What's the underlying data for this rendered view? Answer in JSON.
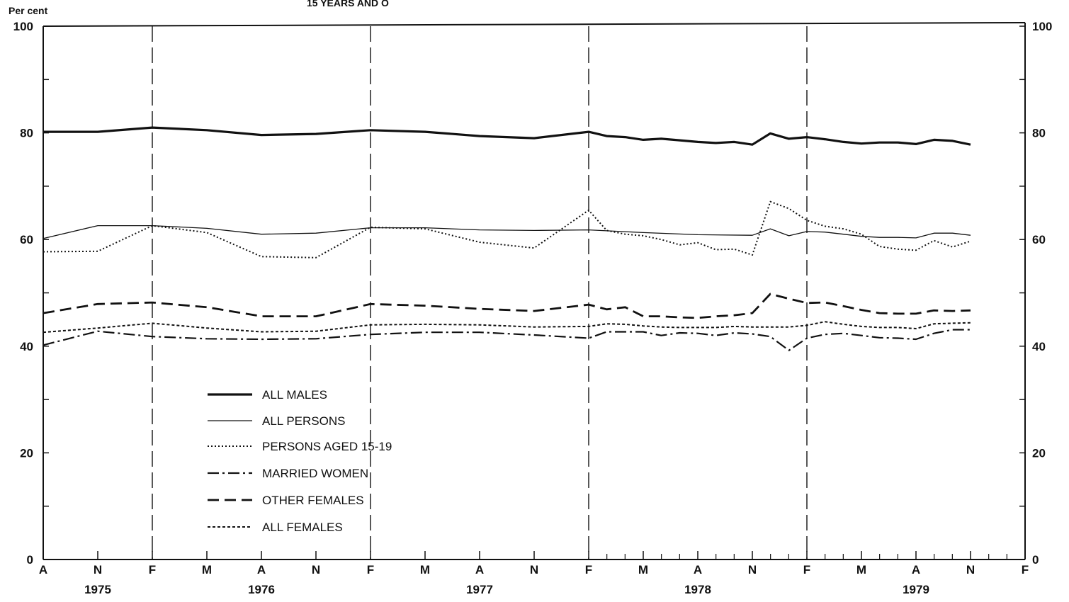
{
  "chart_data": {
    "type": "line",
    "title": "15 YEARS AND O",
    "ylabel": "Per cent",
    "ylim": [
      0,
      100
    ],
    "y_ticks": [
      0,
      20,
      40,
      60,
      80,
      100
    ],
    "grid": "vertical dashed lines at each February",
    "legend_position": "lower-left",
    "x_tick_labels": [
      "A",
      "N",
      "F",
      "M",
      "A",
      "N",
      "F",
      "M",
      "A",
      "N",
      "F",
      "M",
      "A",
      "N",
      "F",
      "M",
      "A",
      "N",
      "F"
    ],
    "x_year_labels": [
      {
        "year": "1975",
        "center": 1
      },
      {
        "year": "1976",
        "center": 4
      },
      {
        "year": "1977",
        "center": 8
      },
      {
        "year": "1978",
        "center": 12
      },
      {
        "year": "1979",
        "center": 16
      }
    ],
    "february_lines": [
      2,
      6,
      10,
      14
    ],
    "series": [
      {
        "name": "ALL MALES",
        "style": "thick-solid",
        "x": [
          0,
          1,
          2,
          3,
          4,
          5,
          6,
          7,
          8,
          9,
          10,
          10.33,
          10.67,
          11,
          11.33,
          11.67,
          12,
          12.33,
          12.67,
          13,
          13.33,
          13.67,
          14,
          14.33,
          14.67,
          15,
          15.33,
          15.67,
          16,
          16.33,
          16.67,
          17
        ],
        "y": [
          80.2,
          80.2,
          81.0,
          80.5,
          79.6,
          79.8,
          80.5,
          80.2,
          79.4,
          79.0,
          80.2,
          79.4,
          79.2,
          78.7,
          78.9,
          78.6,
          78.3,
          78.1,
          78.3,
          77.8,
          79.9,
          78.9,
          79.2,
          78.8,
          78.3,
          78.0,
          78.2,
          78.2,
          77.9,
          78.7,
          78.5,
          77.8
        ]
      },
      {
        "name": "ALL PERSONS",
        "style": "thin-solid",
        "x": [
          0,
          1,
          2,
          3,
          4,
          5,
          6,
          7,
          8,
          9,
          10,
          11,
          12,
          13,
          13.33,
          13.67,
          14,
          14.33,
          14.67,
          15,
          15.33,
          15.67,
          16,
          16.33,
          16.67,
          17
        ],
        "y": [
          60.2,
          62.6,
          62.6,
          62.1,
          61.0,
          61.2,
          62.2,
          62.2,
          61.8,
          61.7,
          61.8,
          61.3,
          60.9,
          60.8,
          62.0,
          60.7,
          61.5,
          61.4,
          61.0,
          60.6,
          60.4,
          60.4,
          60.3,
          61.2,
          61.2,
          60.8
        ]
      },
      {
        "name": "PERSONS AGED 15-19",
        "style": "dotted",
        "x": [
          0,
          1,
          2,
          3,
          4,
          5,
          6,
          7,
          8,
          9,
          10,
          10.33,
          10.67,
          11,
          11.33,
          11.67,
          12,
          12.33,
          12.67,
          13,
          13.33,
          13.67,
          14,
          14.33,
          14.67,
          15,
          15.33,
          15.67,
          16,
          16.33,
          16.67,
          17
        ],
        "y": [
          57.7,
          57.8,
          62.6,
          61.3,
          56.8,
          56.6,
          62.3,
          62.0,
          59.5,
          58.4,
          65.5,
          61.7,
          61.0,
          60.7,
          60.0,
          59.0,
          59.4,
          58.1,
          58.2,
          57.1,
          67.1,
          65.8,
          63.6,
          62.5,
          62.0,
          61.0,
          58.7,
          58.2,
          58.0,
          59.8,
          58.6,
          59.7
        ]
      },
      {
        "name": "MARRIED WOMEN",
        "style": "dash-dot",
        "x": [
          0,
          1,
          2,
          3,
          4,
          5,
          6,
          7,
          8,
          9,
          10,
          10.33,
          10.67,
          11,
          11.33,
          11.67,
          12,
          12.33,
          12.67,
          13,
          13.33,
          13.67,
          14,
          14.33,
          14.67,
          15,
          15.33,
          15.67,
          16,
          16.33,
          16.67,
          17
        ],
        "y": [
          40.2,
          42.8,
          41.8,
          41.4,
          41.3,
          41.4,
          42.2,
          42.6,
          42.6,
          42.1,
          41.5,
          42.7,
          42.7,
          42.7,
          42.0,
          42.5,
          42.4,
          42.0,
          42.5,
          42.3,
          41.8,
          39.2,
          41.5,
          42.2,
          42.4,
          42.0,
          41.6,
          41.5,
          41.3,
          42.4,
          43.1,
          43.1
        ]
      },
      {
        "name": "OTHER FEMALES",
        "style": "long-dash",
        "x": [
          0,
          1,
          2,
          3,
          4,
          5,
          6,
          7,
          8,
          9,
          10,
          10.33,
          10.67,
          11,
          11.33,
          11.67,
          12,
          12.33,
          12.67,
          13,
          13.33,
          13.67,
          14,
          14.33,
          14.67,
          15,
          15.33,
          15.67,
          16,
          16.33,
          16.67,
          17
        ],
        "y": [
          46.2,
          47.9,
          48.2,
          47.3,
          45.6,
          45.6,
          47.9,
          47.6,
          47.0,
          46.6,
          47.8,
          46.9,
          47.3,
          45.6,
          45.6,
          45.4,
          45.3,
          45.6,
          45.8,
          46.2,
          49.8,
          48.9,
          48.1,
          48.2,
          47.5,
          46.8,
          46.2,
          46.1,
          46.1,
          46.7,
          46.6,
          46.7
        ]
      },
      {
        "name": "ALL FEMALES",
        "style": "short-dash",
        "x": [
          0,
          1,
          2,
          3,
          4,
          5,
          6,
          7,
          8,
          9,
          10,
          10.33,
          10.67,
          11,
          11.33,
          11.67,
          12,
          12.33,
          12.67,
          13,
          13.33,
          13.67,
          14,
          14.33,
          14.67,
          15,
          15.33,
          15.67,
          16,
          16.33,
          16.67,
          17
        ],
        "y": [
          42.6,
          43.4,
          44.3,
          43.4,
          42.7,
          42.8,
          44.0,
          44.1,
          44.0,
          43.6,
          43.7,
          44.2,
          44.1,
          43.8,
          43.6,
          43.5,
          43.5,
          43.5,
          43.7,
          43.6,
          43.6,
          43.6,
          43.9,
          44.6,
          44.1,
          43.7,
          43.5,
          43.5,
          43.3,
          44.2,
          44.3,
          44.4
        ]
      }
    ]
  }
}
